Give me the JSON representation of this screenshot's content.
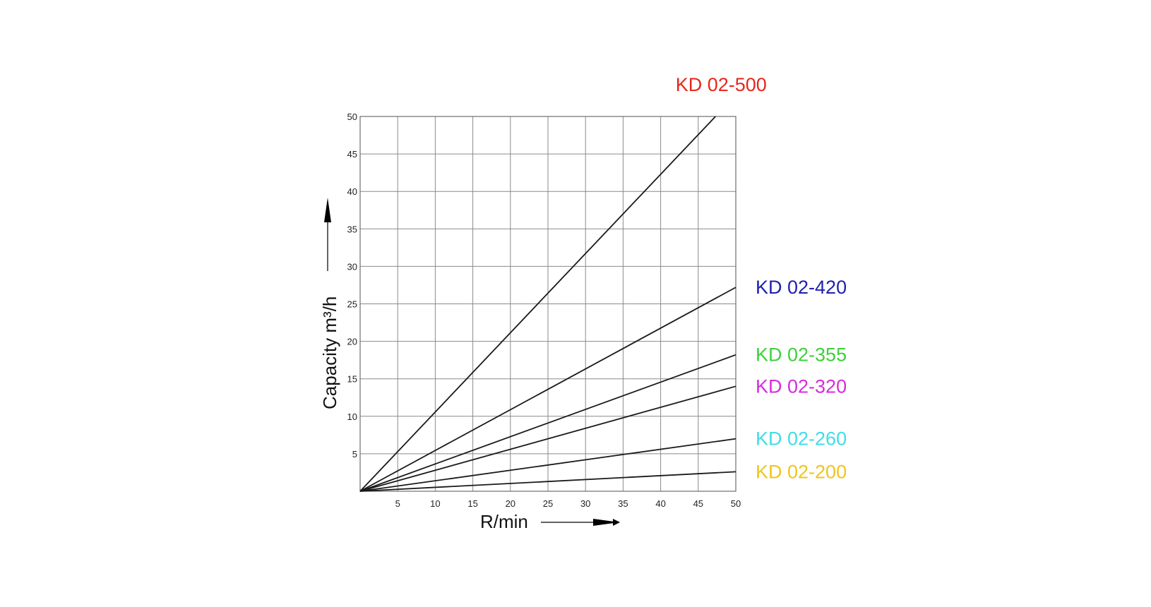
{
  "chart_data": {
    "type": "line",
    "title": "",
    "xlabel": "R/min",
    "ylabel": "Capacity m³/h",
    "xlim": [
      0,
      50
    ],
    "ylim": [
      0,
      50
    ],
    "x_ticks": [
      5,
      10,
      15,
      20,
      25,
      30,
      35,
      40,
      45,
      50
    ],
    "y_ticks": [
      5,
      10,
      15,
      20,
      25,
      30,
      35,
      40,
      45,
      50
    ],
    "grid": true,
    "legend": "labels at right of series ends",
    "series": [
      {
        "name": "KD 02-500",
        "color": "#e8261c",
        "x": [
          0,
          47.3
        ],
        "y": [
          0,
          50
        ]
      },
      {
        "name": "KD 02-420",
        "color": "#1f21b0",
        "x": [
          0,
          50
        ],
        "y": [
          0,
          27.2
        ]
      },
      {
        "name": "KD 02-355",
        "color": "#3dd13a",
        "x": [
          0,
          50
        ],
        "y": [
          0,
          18.2
        ]
      },
      {
        "name": "KD 02-320",
        "color": "#d62be0",
        "x": [
          0,
          50
        ],
        "y": [
          0,
          14.0
        ]
      },
      {
        "name": "KD 02-260",
        "color": "#3fdcea",
        "x": [
          0,
          50
        ],
        "y": [
          0,
          7.0
        ]
      },
      {
        "name": "KD 02-200",
        "color": "#f0c51c",
        "x": [
          0,
          50
        ],
        "y": [
          0,
          2.6
        ]
      }
    ]
  }
}
